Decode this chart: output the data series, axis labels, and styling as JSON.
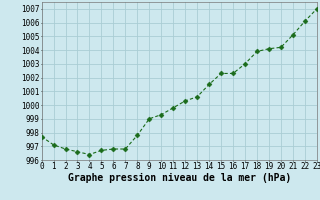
{
  "x": [
    0,
    1,
    2,
    3,
    4,
    5,
    6,
    7,
    8,
    9,
    10,
    11,
    12,
    13,
    14,
    15,
    16,
    17,
    18,
    19,
    20,
    21,
    22,
    23
  ],
  "y": [
    997.7,
    997.1,
    996.8,
    996.6,
    996.4,
    996.7,
    996.8,
    996.8,
    997.8,
    999.0,
    999.3,
    999.8,
    1000.3,
    1000.6,
    1001.5,
    1002.3,
    1002.3,
    1003.0,
    1003.9,
    1004.1,
    1004.2,
    1005.1,
    1006.1,
    1007.0
  ],
  "line_color": "#1a6b1a",
  "marker_color": "#1a6b1a",
  "bg_color": "#cde8ee",
  "grid_color": "#aacdd4",
  "xlabel": "Graphe pression niveau de la mer (hPa)",
  "ylim": [
    996,
    1007.5
  ],
  "xlim": [
    0,
    23
  ],
  "yticks": [
    996,
    997,
    998,
    999,
    1000,
    1001,
    1002,
    1003,
    1004,
    1005,
    1006,
    1007
  ],
  "xticks": [
    0,
    1,
    2,
    3,
    4,
    5,
    6,
    7,
    8,
    9,
    10,
    11,
    12,
    13,
    14,
    15,
    16,
    17,
    18,
    19,
    20,
    21,
    22,
    23
  ],
  "tick_fontsize": 5.5,
  "xlabel_fontsize": 7.0,
  "line_width": 0.8,
  "marker_size": 2.5
}
